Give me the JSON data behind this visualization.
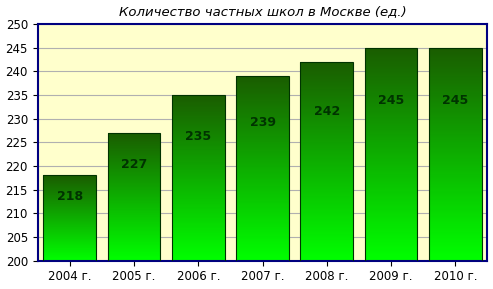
{
  "title": "Количество частных школ в Москве (ед.)",
  "categories": [
    "2004 г.",
    "2005 г.",
    "2006 г.",
    "2007 г.",
    "2008 г.",
    "2009 г.",
    "2010 г."
  ],
  "values": [
    218,
    227,
    235,
    239,
    242,
    245,
    245
  ],
  "ylim": [
    200,
    250
  ],
  "yticks": [
    200,
    205,
    210,
    215,
    220,
    225,
    230,
    235,
    240,
    245,
    250
  ],
  "bar_bottom": 200,
  "bar_color_top": "#1a5c00",
  "bar_color_bottom": "#00ff00",
  "background_color": "#ffffcc",
  "plot_bg_color": "#ffffcc",
  "outer_bg_color": "#ffffff",
  "border_color": "#000080",
  "label_color": "#003300",
  "title_color": "#000000",
  "grid_color": "#b0b0b0",
  "title_fontsize": 9.5,
  "tick_fontsize": 8.5,
  "label_fontsize": 9,
  "bar_width": 0.82,
  "num_grad": 200
}
